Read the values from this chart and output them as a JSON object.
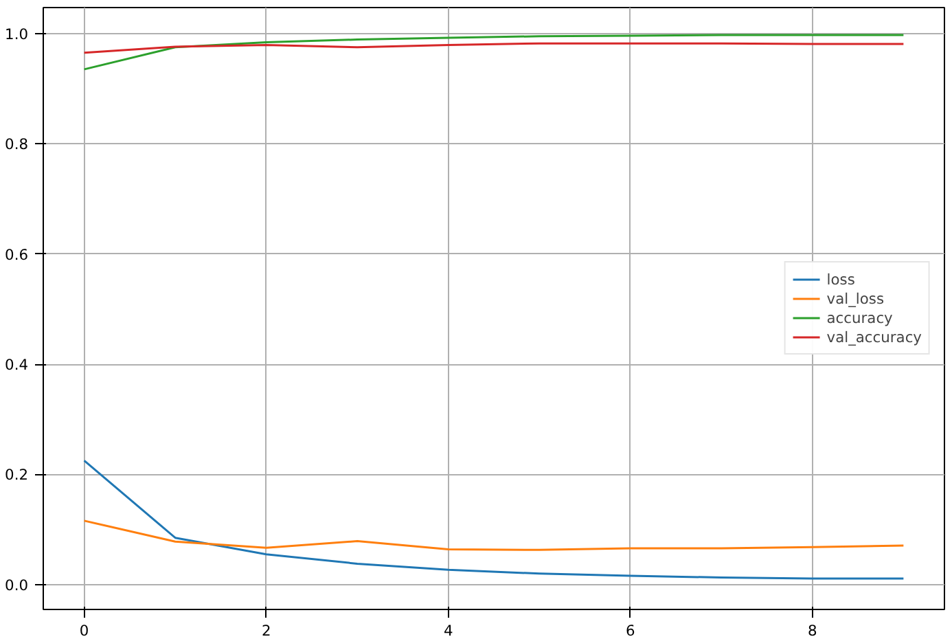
{
  "chart_data": {
    "type": "line",
    "x": [
      0,
      1,
      2,
      3,
      4,
      5,
      6,
      7,
      8,
      9
    ],
    "xlim": [
      -0.45,
      9.45
    ],
    "ylim": [
      -0.045,
      1.047
    ],
    "xticks": [
      0,
      2,
      4,
      6,
      8
    ],
    "yticks": [
      {
        "value": 0,
        "label": "0.0"
      },
      0.2,
      0.4,
      0.6,
      0.8,
      {
        "value": 1,
        "label": "1.0"
      }
    ],
    "grid": true,
    "legend": "right",
    "marker": "none",
    "line_style": "solid",
    "series": [
      {
        "name": "loss",
        "color": "#1f77b4",
        "values": [
          0.225,
          0.085,
          0.055,
          0.038,
          0.027,
          0.02,
          0.016,
          0.013,
          0.011,
          0.011
        ]
      },
      {
        "name": "val_loss",
        "color": "#ff7f0e",
        "values": [
          0.116,
          0.078,
          0.067,
          0.079,
          0.064,
          0.063,
          0.066,
          0.066,
          0.068,
          0.071
        ]
      },
      {
        "name": "accuracy",
        "color": "#2ca02c",
        "values": [
          0.935,
          0.975,
          0.984,
          0.989,
          0.992,
          0.995,
          0.996,
          0.997,
          0.997,
          0.997
        ]
      },
      {
        "name": "val_accuracy",
        "color": "#d62728",
        "values": [
          0.965,
          0.976,
          0.979,
          0.975,
          0.979,
          0.982,
          0.982,
          0.982,
          0.981,
          0.981
        ]
      }
    ]
  }
}
